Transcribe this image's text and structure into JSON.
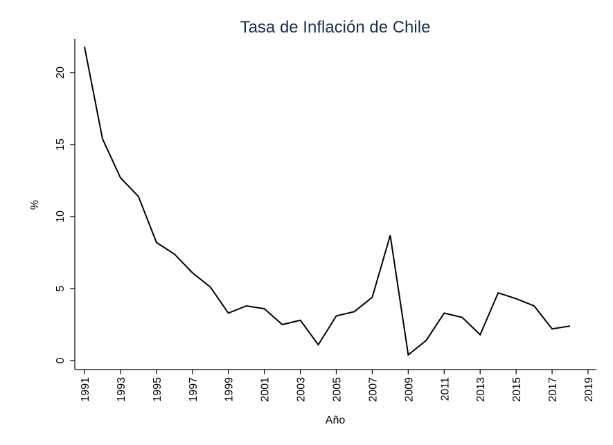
{
  "chart_data": {
    "type": "line",
    "title": "Tasa de Inflación de Chile",
    "xlabel": "Año",
    "ylabel": "%",
    "xlim": [
      1991,
      2019
    ],
    "ylim": [
      0,
      22
    ],
    "x_ticks": [
      "1991",
      "1993",
      "1995",
      "1997",
      "1999",
      "2001",
      "2003",
      "2005",
      "2007",
      "2009",
      "2011",
      "2013",
      "2015",
      "2017",
      "2019"
    ],
    "y_ticks": [
      "0",
      "5",
      "10",
      "15",
      "20"
    ],
    "grid": false,
    "series": [
      {
        "color": "#000000",
        "x": [
          1991,
          1992,
          1993,
          1994,
          1995,
          1996,
          1997,
          1998,
          1999,
          2000,
          2001,
          2002,
          2003,
          2004,
          2005,
          2006,
          2007,
          2008,
          2009,
          2010,
          2011,
          2012,
          2013,
          2014,
          2015,
          2016,
          2017,
          2018
        ],
        "y": [
          21.8,
          15.4,
          12.7,
          11.4,
          8.2,
          7.4,
          6.1,
          5.1,
          3.3,
          3.8,
          3.6,
          2.5,
          2.8,
          1.1,
          3.1,
          3.4,
          4.4,
          8.7,
          0.4,
          1.4,
          3.3,
          3.0,
          1.8,
          4.7,
          4.3,
          3.8,
          2.2,
          2.4
        ]
      }
    ]
  }
}
